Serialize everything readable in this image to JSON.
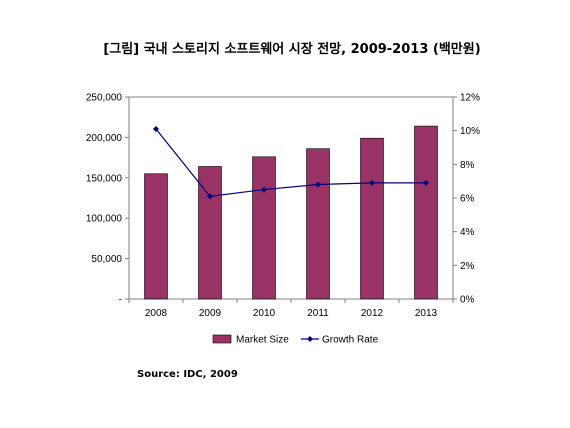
{
  "title": "[그림] 국내 스토리지 소프트웨어 시장 전망, 2009-2013 (백만원)",
  "source": "Source: IDC, 2009",
  "chart_data": {
    "type": "bar",
    "categories": [
      "2008",
      "2009",
      "2010",
      "2011",
      "2012",
      "2013"
    ],
    "series": [
      {
        "name": "Market Size",
        "type": "bar",
        "axis": "left",
        "color": "#993366",
        "values": [
          155000,
          164000,
          176000,
          186000,
          199000,
          214000
        ]
      },
      {
        "name": "Growth Rate",
        "type": "line",
        "axis": "right",
        "color": "#000080",
        "values": [
          10.1,
          6.1,
          6.5,
          6.8,
          6.9,
          6.9
        ]
      }
    ],
    "y_left": {
      "ylim": [
        0,
        250000
      ],
      "ticks": [
        0,
        50000,
        100000,
        150000,
        200000,
        250000
      ],
      "tick_labels": [
        "-",
        "50,000",
        "100,000",
        "150,000",
        "200,000",
        "250,000"
      ]
    },
    "y_right": {
      "ylim": [
        0,
        12
      ],
      "ticks": [
        0,
        2,
        4,
        6,
        8,
        10,
        12
      ],
      "tick_labels": [
        "0%",
        "2%",
        "4%",
        "6%",
        "8%",
        "10%",
        "12%"
      ]
    },
    "grid": false,
    "legend_position": "bottom"
  }
}
